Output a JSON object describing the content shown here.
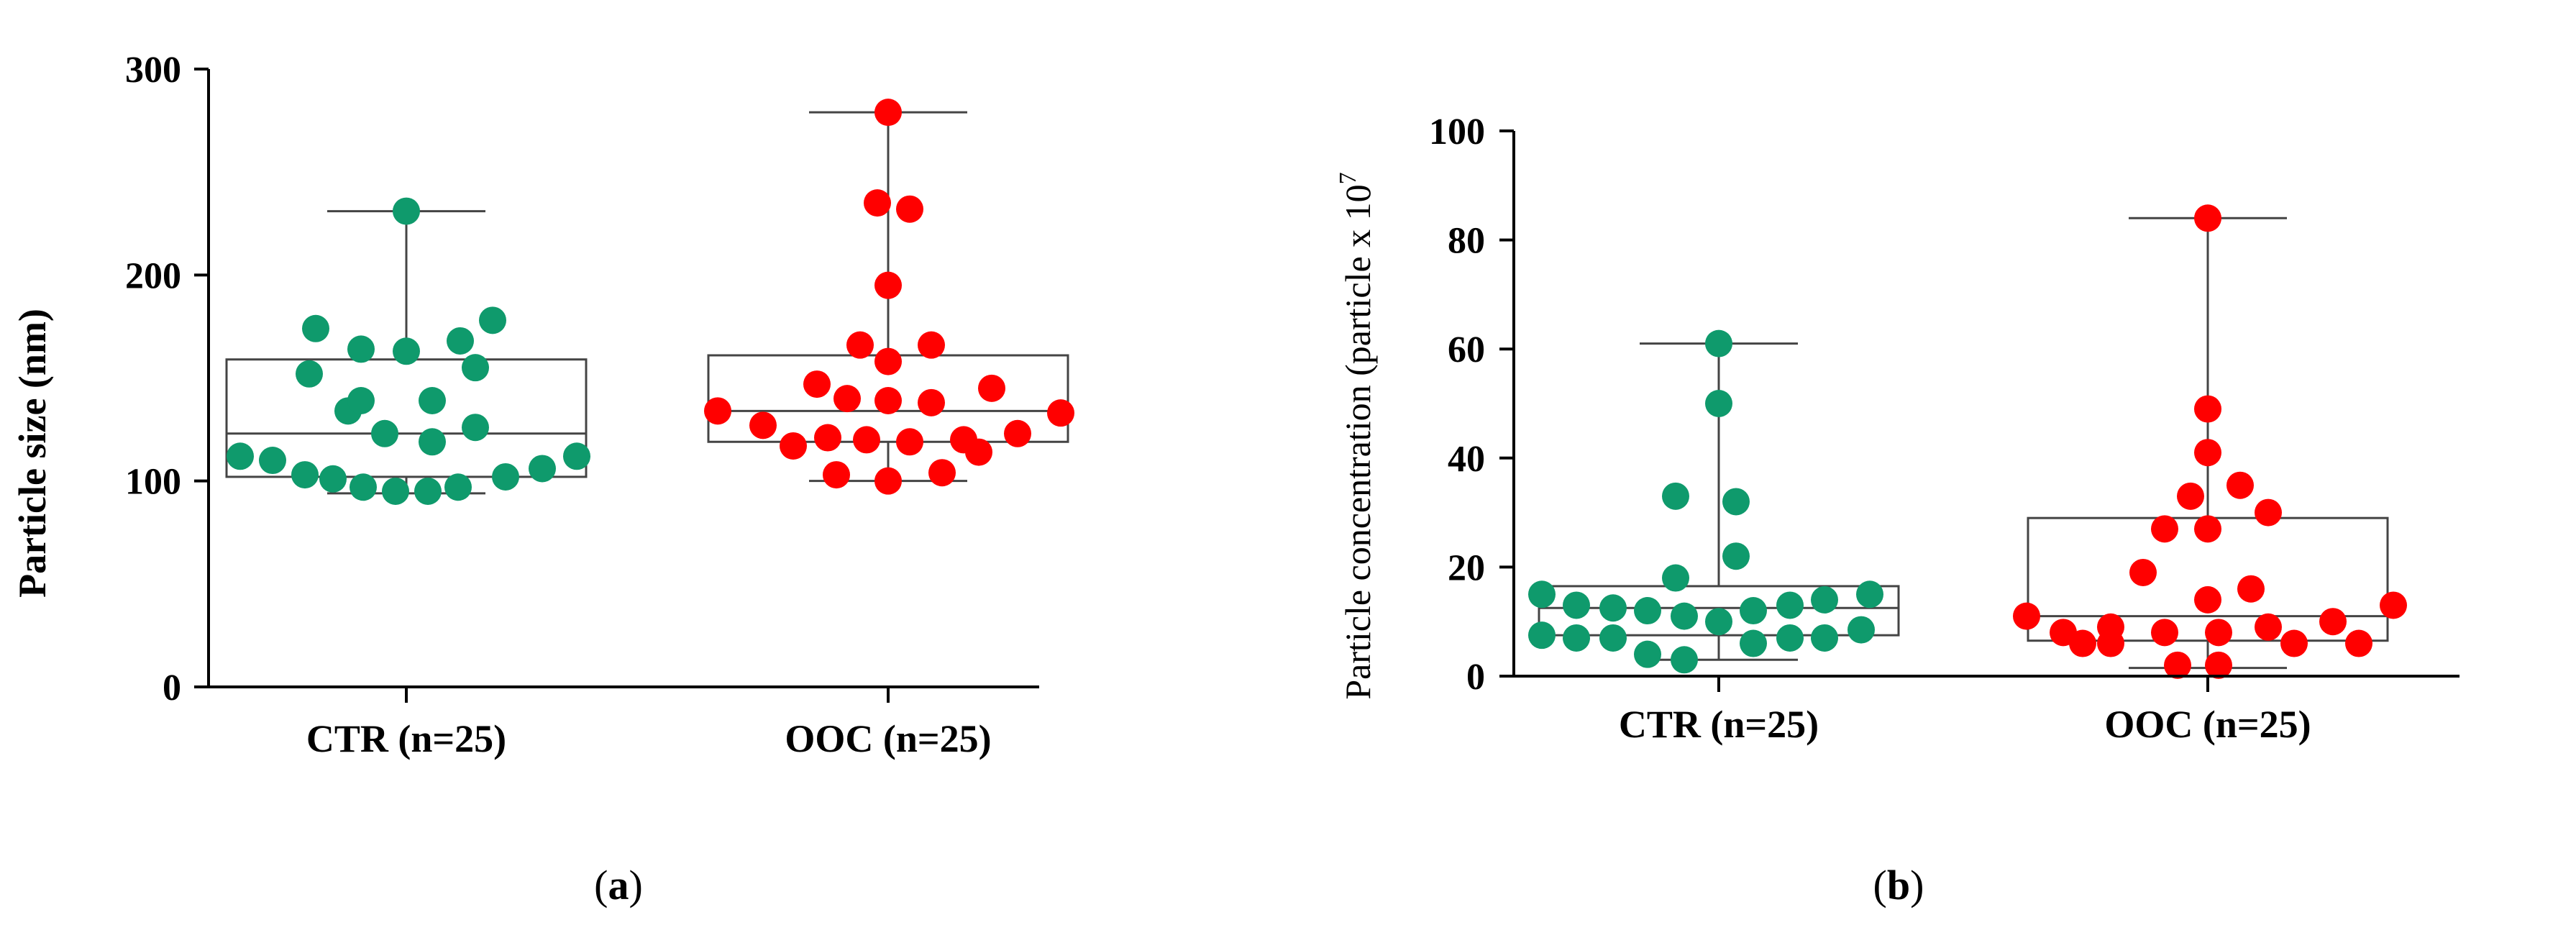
{
  "colors": {
    "ctr": "#0f9a6c",
    "ooc": "#ff0000"
  },
  "chart_data": [
    {
      "type": "box-scatter",
      "panel_label": {
        "open": "(",
        "letter": "a",
        "close": ")"
      },
      "ylabel": "Particle size (nm)",
      "ylim": [
        0,
        300
      ],
      "yticks": [
        "0",
        "100",
        "200",
        "300"
      ],
      "categories": [
        "CTR (n=25)",
        "OOC (n=25)"
      ],
      "groups": [
        {
          "name": "CTR (n=25)",
          "color": "ctr",
          "box": {
            "min": 94,
            "q1": 102,
            "median": 123,
            "q3": 159,
            "max": 231
          },
          "points": [
            {
              "j": -0.77,
              "v": 112
            },
            {
              "j": -0.62,
              "v": 110
            },
            {
              "j": -0.47,
              "v": 103
            },
            {
              "j": -0.34,
              "v": 101
            },
            {
              "j": -0.45,
              "v": 152
            },
            {
              "j": -0.42,
              "v": 174
            },
            {
              "j": -0.27,
              "v": 134
            },
            {
              "j": -0.21,
              "v": 139
            },
            {
              "j": -0.21,
              "v": 164
            },
            {
              "j": -0.2,
              "v": 97
            },
            {
              "j": -0.1,
              "v": 123
            },
            {
              "j": 0.0,
              "v": 231
            },
            {
              "j": 0.0,
              "v": 163
            },
            {
              "j": -0.05,
              "v": 95
            },
            {
              "j": 0.12,
              "v": 119
            },
            {
              "j": 0.12,
              "v": 139
            },
            {
              "j": 0.1,
              "v": 95
            },
            {
              "j": 0.24,
              "v": 97
            },
            {
              "j": 0.25,
              "v": 168
            },
            {
              "j": 0.32,
              "v": 155
            },
            {
              "j": 0.32,
              "v": 126
            },
            {
              "j": 0.4,
              "v": 178
            },
            {
              "j": 0.46,
              "v": 102
            },
            {
              "j": 0.63,
              "v": 106
            },
            {
              "j": 0.79,
              "v": 112
            }
          ]
        },
        {
          "name": "OOC (n=25)",
          "color": "ooc",
          "box": {
            "min": 100,
            "q1": 119,
            "median": 134,
            "q3": 161,
            "max": 279
          },
          "points": [
            {
              "j": -0.79,
              "v": 134
            },
            {
              "j": -0.58,
              "v": 127
            },
            {
              "j": -0.44,
              "v": 117
            },
            {
              "j": -0.33,
              "v": 147
            },
            {
              "j": -0.28,
              "v": 121
            },
            {
              "j": -0.24,
              "v": 103
            },
            {
              "j": -0.19,
              "v": 140
            },
            {
              "j": -0.13,
              "v": 166
            },
            {
              "j": -0.1,
              "v": 120
            },
            {
              "j": -0.05,
              "v": 235
            },
            {
              "j": 0.0,
              "v": 100
            },
            {
              "j": 0.0,
              "v": 158
            },
            {
              "j": 0.0,
              "v": 279
            },
            {
              "j": 0.0,
              "v": 195
            },
            {
              "j": 0.0,
              "v": 139
            },
            {
              "j": 0.1,
              "v": 232
            },
            {
              "j": 0.1,
              "v": 119
            },
            {
              "j": 0.2,
              "v": 138
            },
            {
              "j": 0.2,
              "v": 166
            },
            {
              "j": 0.25,
              "v": 104
            },
            {
              "j": 0.35,
              "v": 120
            },
            {
              "j": 0.42,
              "v": 114
            },
            {
              "j": 0.48,
              "v": 145
            },
            {
              "j": 0.6,
              "v": 123
            },
            {
              "j": 0.8,
              "v": 133
            }
          ]
        }
      ]
    },
    {
      "type": "box-scatter",
      "panel_label": {
        "open": "(",
        "letter": "b",
        "close": ")"
      },
      "ylabel_main": "Particle concentration (particle x 10",
      "ylabel_sup": "7",
      "ylim": [
        0,
        100
      ],
      "yticks": [
        "0",
        "20",
        "40",
        "60",
        "80",
        "100"
      ],
      "categories": [
        "CTR (n=25)",
        "OOC (n=25)"
      ],
      "groups": [
        {
          "name": "CTR (n=25)",
          "color": "ctr",
          "box": {
            "min": 3,
            "q1": 7.5,
            "median": 12.5,
            "q3": 16.5,
            "max": 61
          },
          "points": [
            {
              "j": -0.82,
              "v": 15
            },
            {
              "j": -0.82,
              "v": 7.5
            },
            {
              "j": -0.66,
              "v": 13
            },
            {
              "j": -0.66,
              "v": 7
            },
            {
              "j": -0.49,
              "v": 12.5
            },
            {
              "j": -0.49,
              "v": 7
            },
            {
              "j": -0.33,
              "v": 4
            },
            {
              "j": -0.33,
              "v": 12
            },
            {
              "j": -0.2,
              "v": 18
            },
            {
              "j": -0.2,
              "v": 33
            },
            {
              "j": -0.16,
              "v": 3
            },
            {
              "j": -0.16,
              "v": 11
            },
            {
              "j": 0.0,
              "v": 61
            },
            {
              "j": 0.0,
              "v": 50
            },
            {
              "j": 0.0,
              "v": 10
            },
            {
              "j": 0.08,
              "v": 22
            },
            {
              "j": 0.08,
              "v": 32
            },
            {
              "j": 0.16,
              "v": 6
            },
            {
              "j": 0.16,
              "v": 12
            },
            {
              "j": 0.33,
              "v": 7
            },
            {
              "j": 0.33,
              "v": 13
            },
            {
              "j": 0.49,
              "v": 7
            },
            {
              "j": 0.49,
              "v": 14
            },
            {
              "j": 0.66,
              "v": 8.5
            },
            {
              "j": 0.7,
              "v": 15
            }
          ]
        },
        {
          "name": "OOC (n=25)",
          "color": "ooc",
          "box": {
            "min": 1.5,
            "q1": 6.5,
            "median": 11,
            "q3": 29,
            "max": 84
          },
          "points": [
            {
              "j": -0.84,
              "v": 11
            },
            {
              "j": -0.67,
              "v": 8
            },
            {
              "j": -0.58,
              "v": 6
            },
            {
              "j": -0.45,
              "v": 9
            },
            {
              "j": -0.45,
              "v": 6
            },
            {
              "j": -0.3,
              "v": 19
            },
            {
              "j": -0.2,
              "v": 27
            },
            {
              "j": -0.2,
              "v": 8
            },
            {
              "j": -0.14,
              "v": 2
            },
            {
              "j": -0.08,
              "v": 33
            },
            {
              "j": 0.0,
              "v": 84
            },
            {
              "j": 0.0,
              "v": 49
            },
            {
              "j": 0.0,
              "v": 41
            },
            {
              "j": 0.0,
              "v": 27
            },
            {
              "j": 0.0,
              "v": 14
            },
            {
              "j": 0.05,
              "v": 8
            },
            {
              "j": 0.05,
              "v": 2
            },
            {
              "j": 0.15,
              "v": 35
            },
            {
              "j": 0.2,
              "v": 16
            },
            {
              "j": 0.28,
              "v": 30
            },
            {
              "j": 0.28,
              "v": 9
            },
            {
              "j": 0.4,
              "v": 6
            },
            {
              "j": 0.58,
              "v": 10
            },
            {
              "j": 0.7,
              "v": 6
            },
            {
              "j": 0.86,
              "v": 13
            }
          ]
        }
      ]
    }
  ]
}
